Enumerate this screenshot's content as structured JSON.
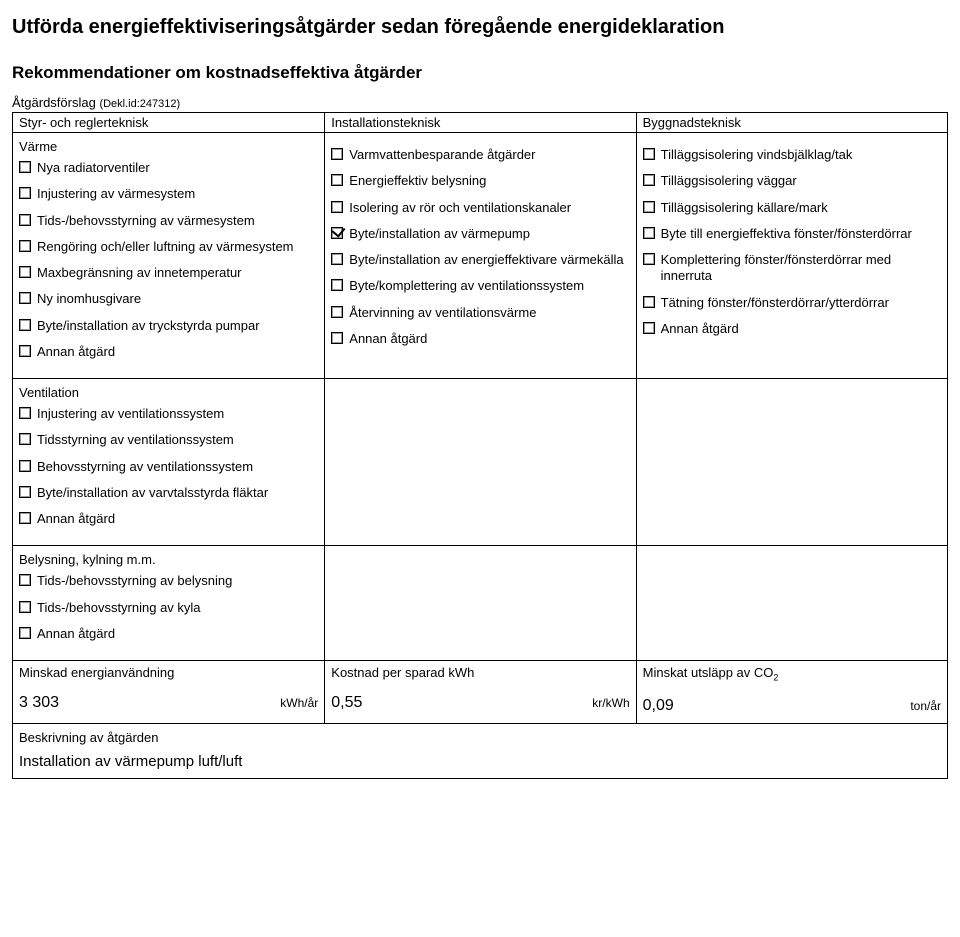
{
  "title_main": "Utförda energieffektiviseringsåtgärder sedan föregående energideklaration",
  "title_sub": "Rekommendationer om kostnadseffektiva åtgärder",
  "proposal_label": "Åtgärdsförslag",
  "decl_id": "(Dekl.id:247312)",
  "headers": {
    "col1": "Styr- och reglerteknisk",
    "col2": "Installationsteknisk",
    "col3": "Byggnadsteknisk"
  },
  "varme": {
    "title": "Värme",
    "items": [
      {
        "label": "Nya radiatorventiler",
        "checked": false
      },
      {
        "label": "Injustering av värmesystem",
        "checked": false
      },
      {
        "label": "Tids-/behovsstyrning av värmesystem",
        "checked": false
      },
      {
        "label": "Rengöring och/eller luftning av värmesystem",
        "checked": false
      },
      {
        "label": "Maxbegränsning av innetemperatur",
        "checked": false
      },
      {
        "label": "Ny inomhusgivare",
        "checked": false
      },
      {
        "label": "Byte/installation av tryckstyrda pumpar",
        "checked": false
      },
      {
        "label": "Annan åtgärd",
        "checked": false
      }
    ]
  },
  "installation": {
    "items": [
      {
        "label": "Varmvattenbesparande åtgärder",
        "checked": false
      },
      {
        "label": "Energieffektiv belysning",
        "checked": false
      },
      {
        "label": "Isolering av rör och ventilationskanaler",
        "checked": false
      },
      {
        "label": "Byte/installation av värmepump",
        "checked": true
      },
      {
        "label": "Byte/installation av energieffektivare värmekälla",
        "checked": false
      },
      {
        "label": "Byte/komplettering av ventilationssystem",
        "checked": false
      },
      {
        "label": "Återvinning av ventilationsvärme",
        "checked": false
      },
      {
        "label": "Annan åtgärd",
        "checked": false
      }
    ]
  },
  "byggnad": {
    "items": [
      {
        "label": "Tilläggsisolering vindsbjälklag/tak",
        "checked": false
      },
      {
        "label": "Tilläggsisolering väggar",
        "checked": false
      },
      {
        "label": "Tilläggsisolering källare/mark",
        "checked": false
      },
      {
        "label": "Byte till energieffektiva fönster/fönsterdörrar",
        "checked": false
      },
      {
        "label": "Komplettering fönster/fönsterdörrar med innerruta",
        "checked": false
      },
      {
        "label": "Tätning fönster/fönsterdörrar/ytterdörrar",
        "checked": false
      },
      {
        "label": "Annan åtgärd",
        "checked": false
      }
    ]
  },
  "ventilation": {
    "title": "Ventilation",
    "items": [
      {
        "label": "Injustering av ventilationssystem",
        "checked": false
      },
      {
        "label": "Tidsstyrning av ventilationssystem",
        "checked": false
      },
      {
        "label": "Behovsstyrning av ventilationssystem",
        "checked": false
      },
      {
        "label": "Byte/installation av varvtalsstyrda fläktar",
        "checked": false
      },
      {
        "label": "Annan åtgärd",
        "checked": false
      }
    ]
  },
  "belysning": {
    "title": "Belysning, kylning m.m.",
    "items": [
      {
        "label": "Tids-/behovsstyrning av belysning",
        "checked": false
      },
      {
        "label": "Tids-/behovsstyrning av kyla",
        "checked": false
      },
      {
        "label": "Annan åtgärd",
        "checked": false
      }
    ]
  },
  "results": {
    "energy": {
      "label": "Minskad energianvändning",
      "value": "3 303",
      "unit": "kWh/år"
    },
    "cost": {
      "label": "Kostnad per sparad kWh",
      "value": "0,55",
      "unit": "kr/kWh"
    },
    "co2": {
      "label": "Minskat utsläpp av CO",
      "sub": "2",
      "value": "0,09",
      "unit": "ton/år"
    }
  },
  "description": {
    "label": "Beskrivning av åtgärden",
    "value": "Installation av värmepump luft/luft"
  }
}
